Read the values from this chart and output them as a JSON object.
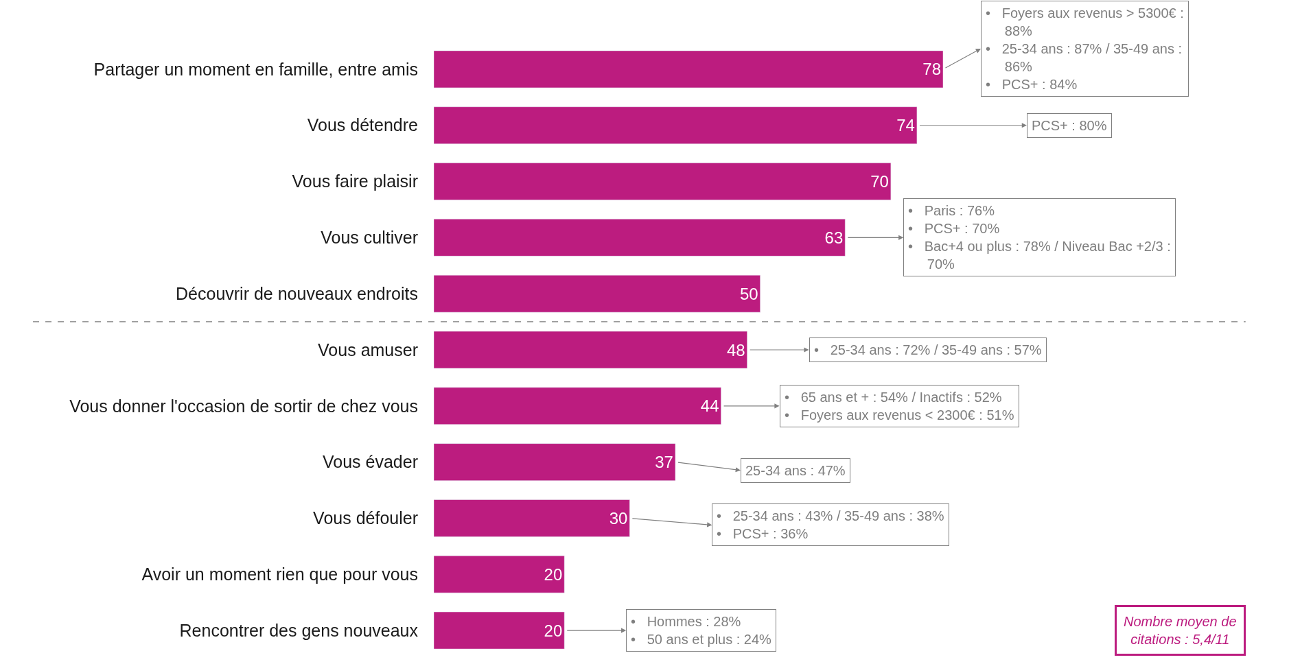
{
  "chart_data": {
    "type": "bar",
    "orientation": "horizontal",
    "data_labels": true,
    "tick_labels": "y",
    "categories": [
      "Partager un moment en famille, entre amis",
      "Vous détendre",
      "Vous faire plaisir",
      "Vous cultiver",
      "Découvrir de nouveaux endroits",
      "Vous amuser",
      "Vous donner l'occasion de sortir de chez vous",
      "Vous évader",
      "Vous défouler",
      "Avoir un moment rien que pour vous",
      "Rencontrer des gens nouveaux"
    ],
    "values": [
      78,
      74,
      70,
      63,
      50,
      48,
      44,
      37,
      30,
      20,
      20
    ],
    "color": "#bc1c7f",
    "annotations": [
      {
        "text": "•   Foyers aux revenus > 5300€ :\n     88%\n•   25-34 ans : 87% / 35-49 ans :\n     86%\n•   PCS+ : 84%",
        "x": 78,
        "y": "Partager un moment en famille, entre amis"
      },
      {
        "text": "PCS+ : 80%",
        "x": 74,
        "y": "Vous détendre"
      },
      {
        "text": "•   Paris : 76%\n•   PCS+ : 70%\n•   Bac+4 ou plus : 78% / Niveau Bac +2/3 :\n     70%",
        "x": 63,
        "y": "Vous cultiver"
      },
      {
        "text": "•   25-34 ans : 72% / 35-49 ans : 57%",
        "x": 48,
        "y": "Vous amuser"
      },
      {
        "text": "•   65 ans et + : 54% / Inactifs : 52%\n•   Foyers aux revenus < 2300€ : 51%",
        "x": 44,
        "y": "Vous donner l'occasion de sortir de chez vous"
      },
      {
        "text": "25-34 ans : 47%",
        "x": 37,
        "y": "Vous évader"
      },
      {
        "text": "•   25-34 ans : 43% / 35-49 ans : 38%\n•   PCS+ : 36%",
        "x": 30,
        "y": "Vous défouler"
      },
      {
        "text": "•   Hommes : 28%\n•   50 ans et plus : 24%",
        "x": 20,
        "y": "Rencontrer des gens nouveaux"
      },
      "Nombre moyen de\ncitations : 5,4/11"
    ]
  }
}
